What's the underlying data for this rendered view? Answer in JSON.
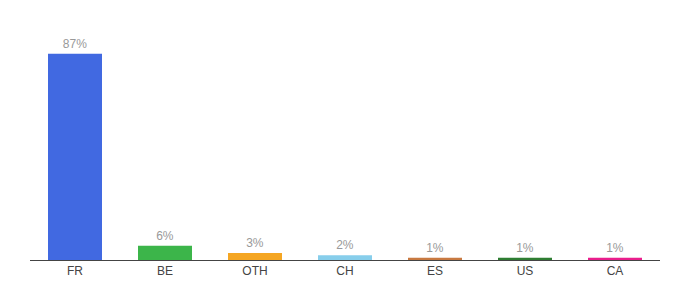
{
  "chart_data": {
    "type": "bar",
    "categories": [
      "FR",
      "BE",
      "OTH",
      "CH",
      "ES",
      "US",
      "CA"
    ],
    "values": [
      87,
      6,
      3,
      2,
      1,
      1,
      1
    ],
    "value_labels": [
      "87%",
      "6%",
      "3%",
      "2%",
      "1%",
      "1%",
      "1%"
    ],
    "colors": [
      "#4169e1",
      "#3cb54a",
      "#f5a623",
      "#87ceeb",
      "#c87941",
      "#2e7d32",
      "#e91e8c"
    ],
    "ylim": [
      0,
      97
    ],
    "grid": false,
    "data_labels": true,
    "tick_labels": "x"
  }
}
